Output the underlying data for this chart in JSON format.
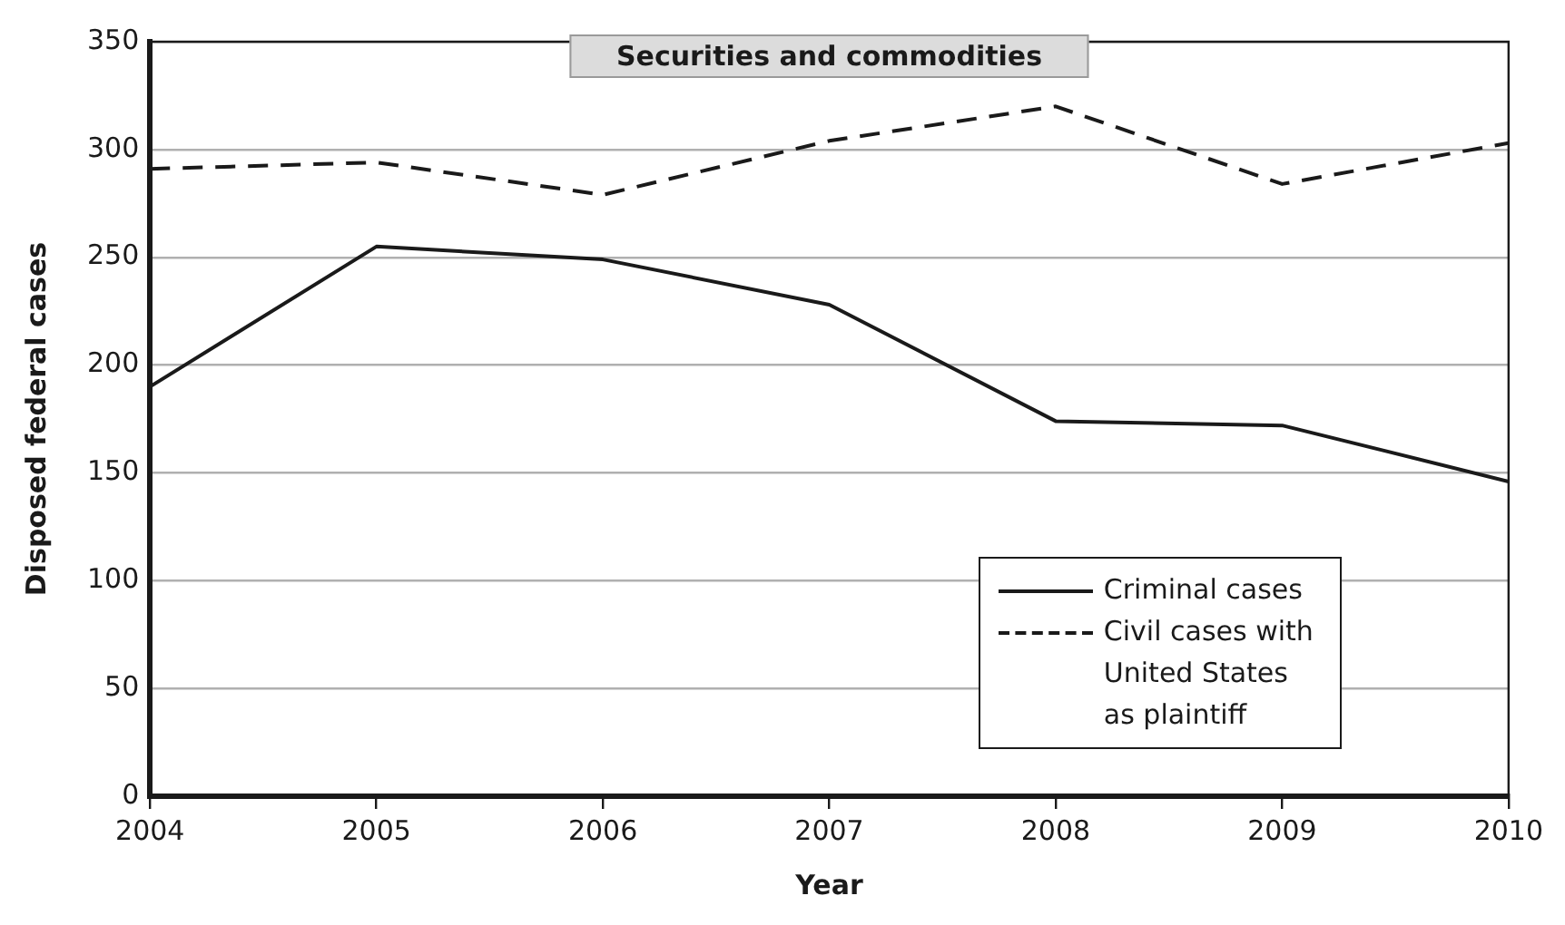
{
  "chart_data": {
    "type": "line",
    "title": "Securities and commodities",
    "xlabel": "Year",
    "ylabel": "Disposed federal cases",
    "x": [
      2004,
      2005,
      2006,
      2007,
      2008,
      2009,
      2010
    ],
    "xlim": [
      2004,
      2010
    ],
    "xticks": [
      2004,
      2005,
      2006,
      2007,
      2008,
      2009,
      2010
    ],
    "ylim": [
      0,
      350
    ],
    "yticks": [
      0,
      50,
      100,
      150,
      200,
      250,
      300,
      350
    ],
    "grid": "y",
    "legend": "bottom right",
    "marker": "none",
    "series": [
      {
        "name": "Criminal cases",
        "color": "#1a1a1a",
        "line_style": "solid",
        "values": [
          190,
          255,
          249,
          228,
          174,
          172,
          146
        ]
      },
      {
        "name": "Civil cases with United States as plaintiff",
        "color": "#1a1a1a",
        "line_style": "dashed",
        "values": [
          291,
          294,
          279,
          304,
          320,
          284,
          303
        ]
      }
    ]
  }
}
